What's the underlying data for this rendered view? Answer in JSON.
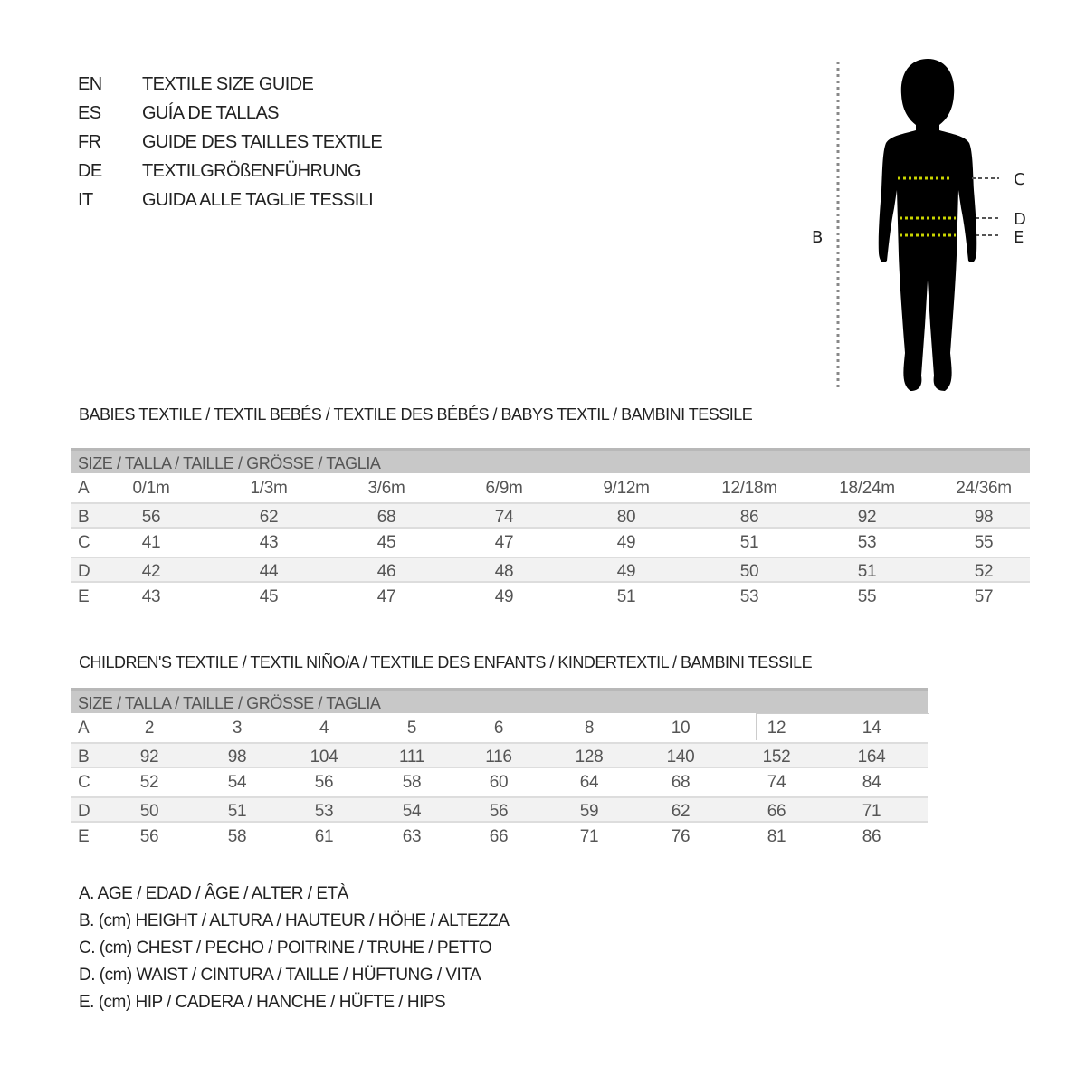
{
  "titles": [
    {
      "lang": "EN",
      "text": "TEXTILE SIZE GUIDE"
    },
    {
      "lang": "ES",
      "text": "GUÍA DE TALLAS"
    },
    {
      "lang": "FR",
      "text": "GUIDE DES TAILLES TEXTILE"
    },
    {
      "lang": "DE",
      "text": "TEXTILGRÖßENFÜHRUNG"
    },
    {
      "lang": "IT",
      "text": "GUIDA ALLE TAGLIE TESSILI"
    }
  ],
  "figure": {
    "labels": {
      "B": "B",
      "C": "C",
      "D": "D",
      "E": "E"
    },
    "measure_line_color": "#c8d400",
    "silhouette_color": "#000000"
  },
  "babies": {
    "heading": "BABIES TEXTILE / TEXTIL BEBÉS / TEXTILE DES BÉBÉS / BABYS TEXTIL  / BAMBINI TESSILE",
    "header": "SIZE / TALLA / TAILLE / GRÖSSE / TAGLIA",
    "rows": [
      {
        "label": "A",
        "values": [
          "0/1m",
          "1/3m",
          "3/6m",
          "6/9m",
          "9/12m",
          "12/18m",
          "18/24m",
          "24/36m"
        ]
      },
      {
        "label": "B",
        "values": [
          "56",
          "62",
          "68",
          "74",
          "80",
          "86",
          "92",
          "98"
        ]
      },
      {
        "label": "C",
        "values": [
          "41",
          "43",
          "45",
          "47",
          "49",
          "51",
          "53",
          "55"
        ]
      },
      {
        "label": "D",
        "values": [
          "42",
          "44",
          "46",
          "48",
          "49",
          "50",
          "51",
          "52"
        ]
      },
      {
        "label": "E",
        "values": [
          "43",
          "45",
          "47",
          "49",
          "51",
          "53",
          "55",
          "57"
        ]
      }
    ]
  },
  "children": {
    "heading": "CHILDREN'S TEXTILE / TEXTIL NIÑO/A / TEXTILE DES ENFANTS / KINDERTEXTIL / BAMBINI TESSILE",
    "header": "SIZE / TALLA / TAILLE / GRÖSSE / TAGLIA",
    "rows": [
      {
        "label": "A",
        "values": [
          "2",
          "3",
          "4",
          "5",
          "6",
          "8",
          "10",
          "12",
          "14"
        ]
      },
      {
        "label": "B",
        "values": [
          "92",
          "98",
          "104",
          "111",
          "116",
          "128",
          "140",
          "152",
          "164"
        ]
      },
      {
        "label": "C",
        "values": [
          "52",
          "54",
          "56",
          "58",
          "60",
          "64",
          "68",
          "74",
          "84"
        ]
      },
      {
        "label": "D",
        "values": [
          "50",
          "51",
          "53",
          "54",
          "56",
          "59",
          "62",
          "66",
          "71"
        ]
      },
      {
        "label": "E",
        "values": [
          "56",
          "58",
          "61",
          "63",
          "66",
          "71",
          "76",
          "81",
          "86"
        ]
      }
    ]
  },
  "legend": [
    "A. AGE / EDAD / ÂGE / ALTER / ETÀ",
    "B. (cm) HEIGHT / ALTURA / HAUTEUR / HÖHE / ALTEZZA",
    "C. (cm) CHEST / PECHO / POITRINE / TRUHE / PETTO",
    "D. (cm) WAIST / CINTURA / TAILLE / HÜFTUNG / VITA",
    "E. (cm) HIP / CADERA / HANCHE / HÜFTE / HIPS"
  ]
}
